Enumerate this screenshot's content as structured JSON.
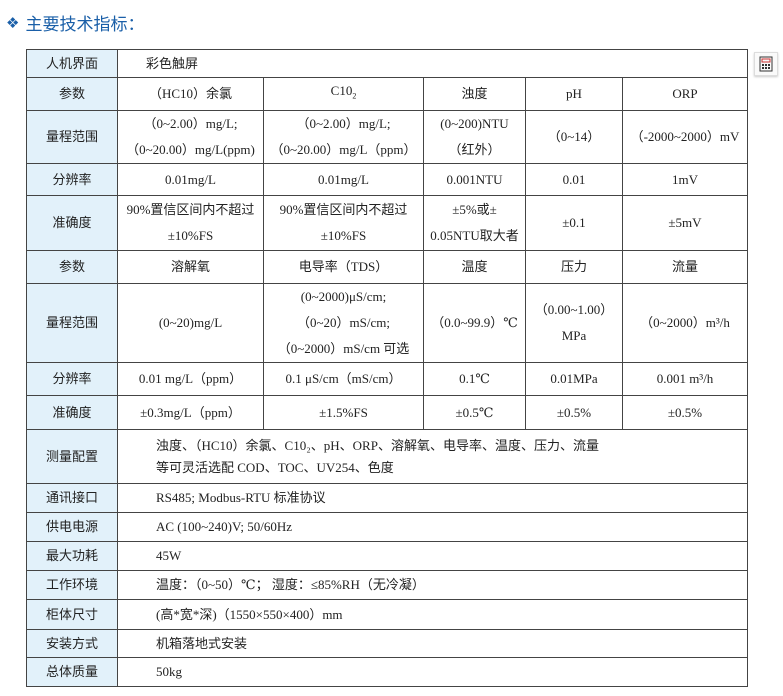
{
  "title": "主要技术指标：",
  "accent": "#1a5fa8",
  "label_bg": "#e2f1fa",
  "icons": {
    "bullet": "diamond-bullet-icon",
    "side": "calculator-icon"
  },
  "rows": {
    "hmi": {
      "label": "人机界面",
      "value": "彩色触屏"
    },
    "params1": {
      "label": "参数",
      "cells": [
        "（HC10）余氯",
        "C10",
        "浊度",
        "pH",
        "ORP"
      ],
      "sub": "2"
    },
    "range1": {
      "label": "量程范围",
      "cells": [
        [
          "（0~2.00）mg/L;",
          "（0~20.00）mg/L(ppm)"
        ],
        [
          "（0~2.00）mg/L;",
          "（0~20.00）mg/L（ppm）"
        ],
        [
          "(0~200)NTU",
          "（红外）"
        ],
        [
          "（0~14）"
        ],
        [
          "（-2000~2000）mV"
        ]
      ]
    },
    "res1": {
      "label": "分辨率",
      "cells": [
        "0.01mg/L",
        "0.01mg/L",
        "0.001NTU",
        "0.01",
        "1mV"
      ]
    },
    "acc1": {
      "label": "准确度",
      "cells": [
        [
          "90%置信区间内不超过",
          "±10%FS"
        ],
        [
          "90%置信区间内不超过",
          "±10%FS"
        ],
        [
          "±5%或±",
          "0.05NTU取大者"
        ],
        [
          "±0.1"
        ],
        [
          "±5mV"
        ]
      ]
    },
    "params2": {
      "label": "参数",
      "cells": [
        "溶解氧",
        "电导率（TDS）",
        "温度",
        "压力",
        "流量"
      ]
    },
    "range2": {
      "label": "量程范围",
      "cells": [
        [
          "(0~20)mg/L"
        ],
        [
          "(0~2000)μS/cm;",
          "（0~20）mS/cm;",
          "（0~2000）mS/cm 可选"
        ],
        [
          "（0.0~99.9）℃"
        ],
        [
          "（0.00~1.00）",
          "MPa"
        ],
        [
          "（0~2000）m³/h"
        ]
      ]
    },
    "res2": {
      "label": "分辨率",
      "cells": [
        "0.01 mg/L（ppm）",
        "0.1 μS/cm（mS/cm）",
        "0.1℃",
        "0.01MPa",
        "0.001 m³/h"
      ]
    },
    "acc2": {
      "label": "准确度",
      "cells": [
        "±0.3mg/L（ppm）",
        "±1.5%FS",
        "±0.5℃",
        "±0.5%",
        "±0.5%"
      ]
    },
    "config": {
      "label": "测量配置",
      "lines": [
        "浊度、（HC10）余氯、C10₂、pH、ORP、溶解氧、电导率、温度、压力、流量",
        "等可灵活选配 COD、TOC、UV254、色度"
      ]
    },
    "comm": {
      "label": "通讯接口",
      "value": "RS485; Modbus-RTU 标准协议"
    },
    "power": {
      "label": "供电电源",
      "value": "AC (100~240)V; 50/60Hz"
    },
    "consumption": {
      "label": "最大功耗",
      "value": "45W"
    },
    "env": {
      "label": "工作环境",
      "value": "温度：（0~50）℃；   湿度：≤85%RH（无冷凝）"
    },
    "size": {
      "label": "柜体尺寸",
      "value": "(高*宽*深)（1550×550×400）mm"
    },
    "install": {
      "label": "安装方式",
      "value": "机箱落地式安装"
    },
    "weight": {
      "label": "总体质量",
      "value": "50kg"
    }
  }
}
